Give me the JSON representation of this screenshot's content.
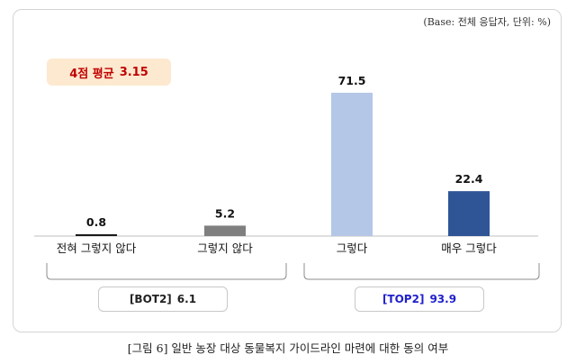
{
  "base_note": "(Base: 전체 응답자, 단위: %)",
  "avg_badge": {
    "label": "4점 평균",
    "value": "3.15"
  },
  "chart_data": {
    "type": "bar",
    "categories": [
      "전혀 그렇지 않다",
      "그렇지 않다",
      "그렇다",
      "매우 그렇다"
    ],
    "values": [
      0.8,
      5.2,
      71.5,
      22.4
    ],
    "value_labels": [
      "0.8",
      "5.2",
      "71.5",
      "22.4"
    ],
    "colors": [
      "#1a1a1a",
      "#7f7f7f",
      "#b4c7e7",
      "#2f5597"
    ],
    "ylim": [
      0,
      75
    ],
    "grid": false,
    "legend": "none",
    "title": "",
    "xlabel": "",
    "ylabel": ""
  },
  "summary": {
    "bot": {
      "label": "[BOT2]",
      "value": "6.1"
    },
    "top": {
      "label": "[TOP2]",
      "value": "93.9"
    }
  },
  "caption": "[그림 6] 일반 농장 대상 동물복지 가이드라인 마련에 대한 동의 여부"
}
